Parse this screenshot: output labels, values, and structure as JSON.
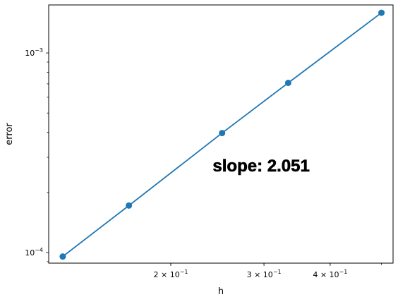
{
  "chart_data": {
    "type": "line",
    "xscale": "log",
    "yscale": "log",
    "xlabel": "h",
    "ylabel": "error",
    "xlim": [
      0.1176,
      0.5259
    ],
    "ylim": [
      8.85e-05,
      0.00174
    ],
    "xticks": [
      {
        "value": 0.2,
        "base": "2 × 10",
        "exp": "−1"
      },
      {
        "value": 0.3,
        "base": "3 × 10",
        "exp": "−1"
      },
      {
        "value": 0.4,
        "base": "4 × 10",
        "exp": "−1"
      }
    ],
    "yticks": [
      {
        "value": 0.001,
        "base": "10",
        "exp": "−3"
      },
      {
        "value": 0.0001,
        "base": "10",
        "exp": "−4"
      }
    ],
    "series": [
      {
        "color": "#1f77b4",
        "marker": "circle",
        "x": [
          0.125,
          0.1667,
          0.25,
          0.3333,
          0.5
        ],
        "y": [
          9.55e-05,
          0.000172,
          0.000397,
          0.000708,
          0.00159
        ]
      }
    ],
    "annotation": {
      "text": "slope: 2.051",
      "x": 0.24,
      "y": 0.000255
    },
    "grid": false
  }
}
